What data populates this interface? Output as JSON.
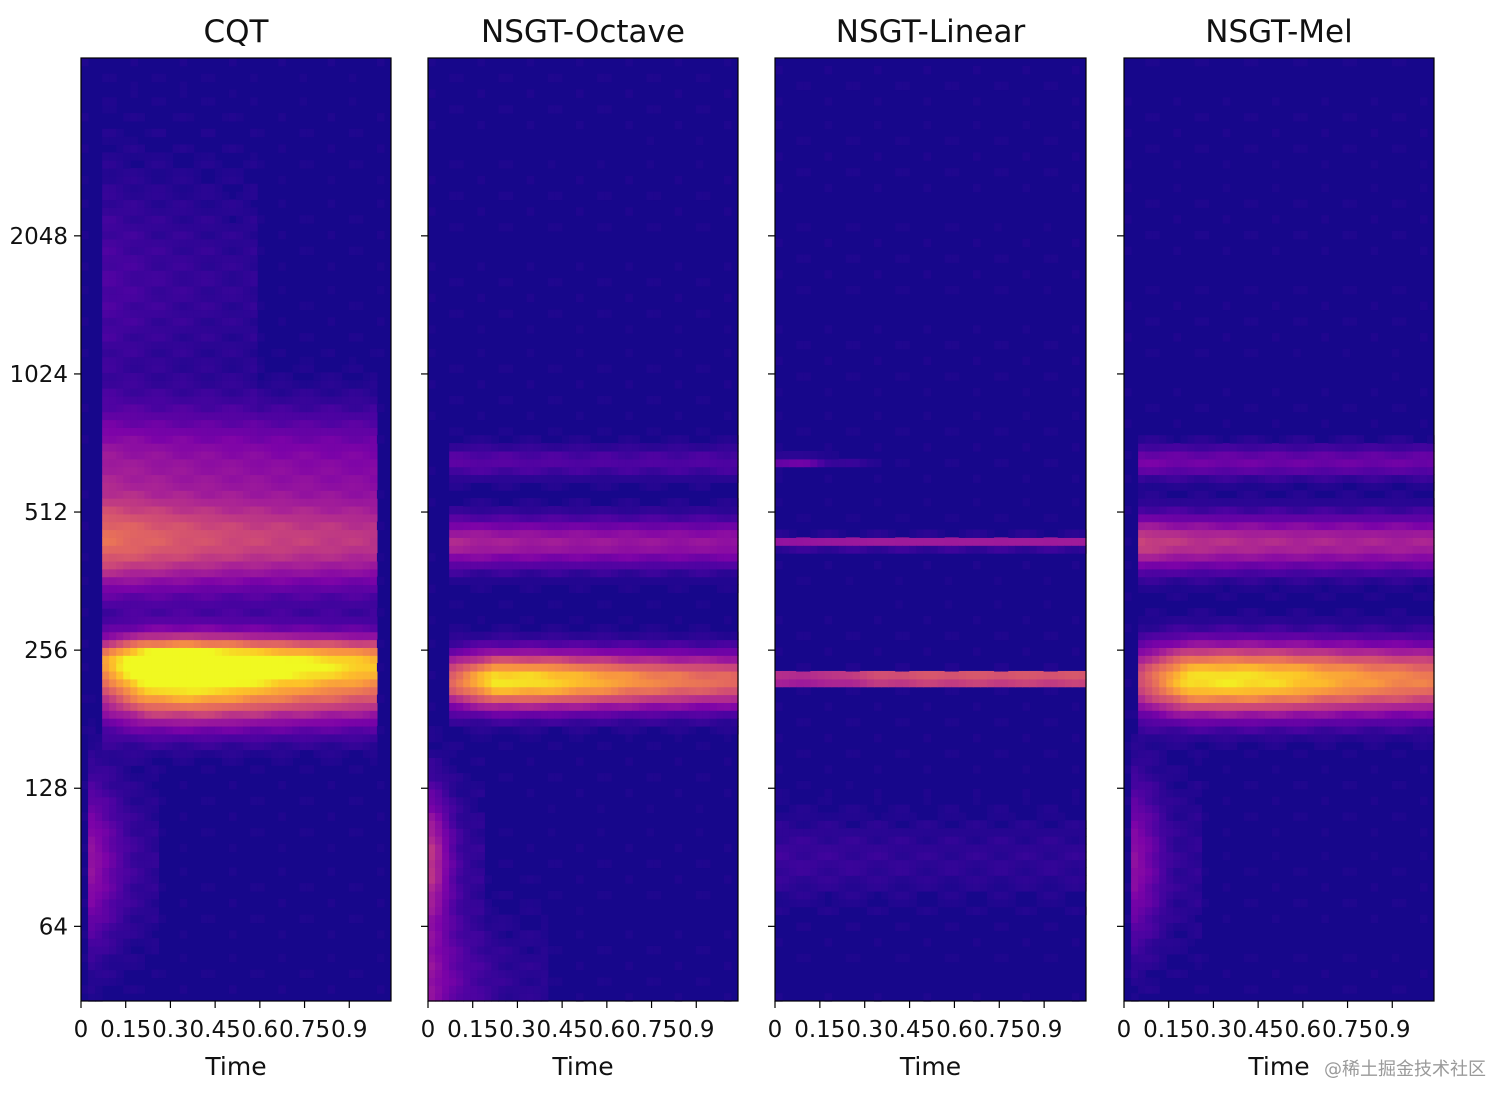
{
  "chart_data": {
    "type": "heatmap",
    "colormap": "plasma",
    "shared_y": {
      "scale": "log2",
      "ticks": [
        64,
        128,
        256,
        512,
        1024,
        2048
      ],
      "tick_labels": [
        "64",
        "128",
        "256",
        "512",
        "1024",
        "2048"
      ],
      "range": [
        44,
        5000
      ]
    },
    "shared_x": {
      "label": "Time",
      "range": [
        0,
        1.04
      ],
      "ticks": [
        0,
        0.15,
        0.3,
        0.45,
        0.6,
        0.75,
        0.9
      ],
      "tick_labels": [
        "0",
        "0.15",
        "0.3",
        "0.45",
        "0.6",
        "0.75",
        "0.9"
      ]
    },
    "panels": [
      {
        "title": "CQT",
        "bands": [
          {
            "freq": 220,
            "spread": 0.03,
            "t_start": 0.06,
            "t_end": 1.0,
            "intensity": [
              0.45,
              0.9,
              0.97,
              0.88,
              0.78,
              0.7,
              0.62
            ]
          },
          {
            "freq": 245,
            "spread": 0.015,
            "t_start": 0.06,
            "t_end": 1.0,
            "intensity": [
              0.35,
              0.5,
              0.5,
              0.45,
              0.4,
              0.38,
              0.35
            ]
          },
          {
            "freq": 440,
            "spread": 0.035,
            "t_start": 0.06,
            "t_end": 1.0,
            "intensity": [
              0.6,
              0.55,
              0.5,
              0.46,
              0.44,
              0.42,
              0.4
            ]
          },
          {
            "freq": 660,
            "spread": 0.04,
            "t_start": 0.06,
            "t_end": 1.0,
            "intensity": [
              0.3,
              0.28,
              0.26,
              0.25,
              0.24,
              0.23,
              0.22
            ]
          },
          {
            "freq": 88,
            "spread": 0.06,
            "t_start": 0.03,
            "t_end": 0.25,
            "intensity": [
              0.3,
              0.25,
              0.18,
              0.12,
              0.08,
              0.06,
              0.05
            ]
          },
          {
            "freq": 1600,
            "spread": 0.08,
            "t_start": 0.06,
            "t_end": 0.6,
            "intensity": [
              0.12,
              0.1,
              0.08,
              0.07,
              0.06,
              0.05,
              0.05
            ]
          }
        ]
      },
      {
        "title": "NSGT-Octave",
        "bands": [
          {
            "freq": 220,
            "spread": 0.02,
            "t_start": 0.06,
            "t_end": 1.04,
            "intensity": [
              0.55,
              0.95,
              0.92,
              0.82,
              0.72,
              0.65,
              0.6
            ]
          },
          {
            "freq": 440,
            "spread": 0.018,
            "t_start": 0.06,
            "t_end": 1.04,
            "intensity": [
              0.38,
              0.35,
              0.33,
              0.32,
              0.31,
              0.3,
              0.3
            ]
          },
          {
            "freq": 660,
            "spread": 0.012,
            "t_start": 0.06,
            "t_end": 1.04,
            "intensity": [
              0.15,
              0.14,
              0.13,
              0.12,
              0.12,
              0.12,
              0.12
            ]
          },
          {
            "freq": 90,
            "spread": 0.05,
            "t_start": 0.0,
            "t_end": 0.2,
            "intensity": [
              0.45,
              0.35,
              0.2,
              0.1,
              0.06,
              0.05,
              0.05
            ]
          },
          {
            "freq": 48,
            "spread": 0.05,
            "t_start": 0.0,
            "t_end": 0.4,
            "intensity": [
              0.3,
              0.2,
              0.12,
              0.08,
              0.05,
              0.04,
              0.04
            ]
          }
        ]
      },
      {
        "title": "NSGT-Linear",
        "bands": [
          {
            "freq": 222,
            "spread": 0.004,
            "t_start": 0.0,
            "t_end": 1.04,
            "intensity": [
              0.62,
              0.65,
              0.8,
              0.85,
              0.85,
              0.85,
              0.85
            ]
          },
          {
            "freq": 440,
            "spread": 0.004,
            "t_start": 0.0,
            "t_end": 1.04,
            "intensity": [
              0.3,
              0.32,
              0.34,
              0.34,
              0.34,
              0.34,
              0.34
            ]
          },
          {
            "freq": 660,
            "spread": 0.004,
            "t_start": 0.0,
            "t_end": 0.35,
            "intensity": [
              0.2,
              0.2,
              0.18,
              0.1,
              0.06,
              0.05,
              0.05
            ]
          },
          {
            "freq": 90,
            "spread": 0.03,
            "t_start": 0.0,
            "t_end": 1.04,
            "intensity": [
              0.08,
              0.07,
              0.06,
              0.05,
              0.05,
              0.05,
              0.05
            ]
          }
        ]
      },
      {
        "title": "NSGT-Mel",
        "bands": [
          {
            "freq": 221,
            "spread": 0.025,
            "t_start": 0.05,
            "t_end": 1.04,
            "intensity": [
              0.5,
              0.93,
              0.95,
              0.9,
              0.8,
              0.72,
              0.66
            ]
          },
          {
            "freq": 440,
            "spread": 0.02,
            "t_start": 0.05,
            "t_end": 1.04,
            "intensity": [
              0.48,
              0.42,
              0.4,
              0.38,
              0.37,
              0.36,
              0.36
            ]
          },
          {
            "freq": 660,
            "spread": 0.012,
            "t_start": 0.05,
            "t_end": 1.04,
            "intensity": [
              0.22,
              0.2,
              0.2,
              0.19,
              0.19,
              0.19,
              0.19
            ]
          },
          {
            "freq": 88,
            "spread": 0.06,
            "t_start": 0.02,
            "t_end": 0.25,
            "intensity": [
              0.3,
              0.25,
              0.18,
              0.1,
              0.06,
              0.05,
              0.05
            ]
          }
        ]
      }
    ]
  },
  "watermark": "@稀土掘金技术社区"
}
